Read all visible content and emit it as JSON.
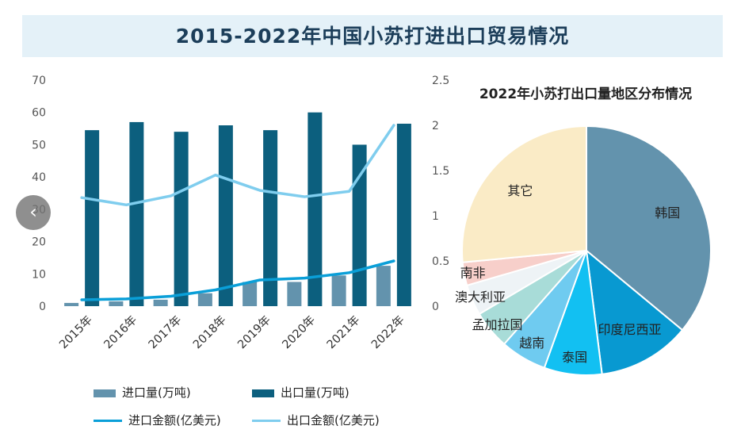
{
  "title": "2015-2022年中国小苏打进出口贸易情况",
  "nav": {
    "prev_icon": "‹"
  },
  "colors": {
    "import_volume": "#6393ad",
    "export_volume": "#0c5f7e",
    "import_value": "#0a9fd8",
    "export_value": "#7fcdee",
    "title_band": "#e4f1f8"
  },
  "chart_data": [
    {
      "type": "bar",
      "categories": [
        "2015年",
        "2016年",
        "2017年",
        "2018年",
        "2019年",
        "2020年",
        "2021年",
        "2022年"
      ],
      "series": [
        {
          "name": "进口量(万吨)",
          "kind": "bar",
          "axis": "left",
          "color": "#6393ad",
          "values": [
            1,
            1.5,
            2,
            4,
            7.5,
            7.5,
            9.5,
            12.5
          ]
        },
        {
          "name": "出口量(万吨)",
          "kind": "bar",
          "axis": "left",
          "color": "#0c5f7e",
          "values": [
            54.5,
            57,
            54,
            56,
            54.5,
            60,
            50,
            56.5
          ]
        },
        {
          "name": "进口金额(亿美元)",
          "kind": "line",
          "axis": "right",
          "color": "#0a9fd8",
          "values": [
            0.07,
            0.08,
            0.11,
            0.18,
            0.29,
            0.31,
            0.37,
            0.5
          ]
        },
        {
          "name": "出口金额(亿美元)",
          "kind": "line",
          "axis": "right",
          "color": "#7fcdee",
          "values": [
            1.2,
            1.12,
            1.22,
            1.45,
            1.28,
            1.21,
            1.27,
            2.0
          ]
        }
      ],
      "ylim_left": [
        0,
        70
      ],
      "yticks_left": [
        "0",
        "10",
        "20",
        "30",
        "40",
        "50",
        "60",
        "70"
      ],
      "ylim_right": [
        0,
        2.5
      ],
      "yticks_right": [
        "0",
        "0.5",
        "1",
        "1.5",
        "2",
        "2.5"
      ],
      "legend_position": "bottom-left",
      "grid": false
    },
    {
      "type": "pie",
      "title": "2022年小苏打出口量地区分布情况",
      "labels": [
        "韩国",
        "印度尼西亚",
        "泰国",
        "越南",
        "孟加拉国",
        "澳大利亚",
        "南非",
        "其它"
      ],
      "values": [
        36,
        12,
        7.5,
        6,
        5,
        4,
        3,
        26.5
      ],
      "colors": [
        "#6393ad",
        "#0899d1",
        "#12c0f2",
        "#6fcbf0",
        "#a8dcd8",
        "#eef3f6",
        "#f7cfca",
        "#faebc6"
      ]
    }
  ]
}
